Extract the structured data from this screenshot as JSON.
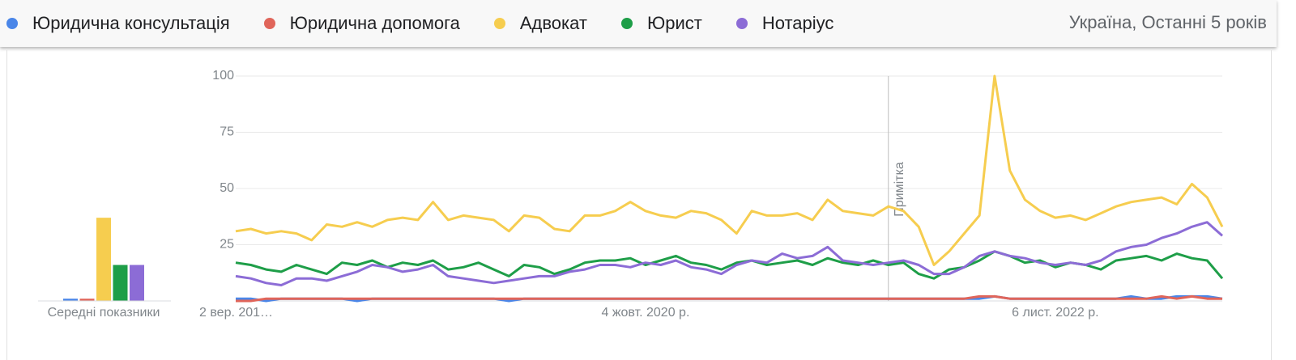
{
  "header": {
    "region": "Україна, Останні 5 років"
  },
  "chart_data": {
    "type": "line",
    "categories": [
      "2 вер. 201…",
      null,
      null,
      null,
      null,
      null,
      null,
      null,
      null,
      null,
      null,
      null,
      null,
      null,
      null,
      null,
      null,
      null,
      null,
      null,
      null,
      null,
      null,
      null,
      null,
      null,
      null,
      "4 жовт. 2020 р.",
      null,
      null,
      null,
      null,
      null,
      null,
      null,
      null,
      null,
      null,
      null,
      null,
      null,
      null,
      null,
      null,
      null,
      null,
      null,
      null,
      null,
      null,
      null,
      null,
      null,
      null,
      "6 лист. 2022 р.",
      null,
      null,
      null,
      null,
      null,
      null,
      null,
      null,
      null,
      null,
      null
    ],
    "ylim": [
      0,
      100
    ],
    "yticks": [
      25,
      50,
      75,
      100
    ],
    "grid": true,
    "annotation": {
      "text": "Примітка",
      "index": 43
    },
    "averages": {
      "label": "Середні показники",
      "values": [
        1,
        1,
        37,
        16,
        16
      ]
    },
    "series": [
      {
        "name": "Юридична консультація",
        "color": "#4a86e8",
        "values": [
          1,
          1,
          0,
          1,
          1,
          1,
          1,
          1,
          0,
          1,
          1,
          1,
          1,
          1,
          1,
          1,
          1,
          1,
          0,
          1,
          1,
          1,
          1,
          1,
          1,
          1,
          1,
          1,
          1,
          1,
          1,
          1,
          1,
          1,
          1,
          1,
          1,
          1,
          1,
          1,
          1,
          1,
          1,
          1,
          1,
          1,
          1,
          1,
          1,
          1,
          2,
          1,
          1,
          1,
          1,
          1,
          1,
          1,
          1,
          2,
          1,
          1,
          2,
          2,
          2,
          1
        ]
      },
      {
        "name": "Юридична допомога",
        "color": "#e0655a",
        "values": [
          0,
          0,
          1,
          1,
          1,
          1,
          1,
          1,
          1,
          1,
          1,
          1,
          1,
          1,
          1,
          1,
          1,
          1,
          1,
          1,
          1,
          1,
          1,
          1,
          1,
          1,
          1,
          1,
          1,
          1,
          1,
          1,
          1,
          1,
          1,
          1,
          1,
          1,
          1,
          1,
          1,
          1,
          1,
          1,
          1,
          1,
          1,
          1,
          1,
          2,
          2,
          1,
          1,
          1,
          1,
          1,
          1,
          1,
          1,
          1,
          1,
          2,
          1,
          2,
          1,
          1
        ]
      },
      {
        "name": "Адвокат",
        "color": "#f6cd4f",
        "values": [
          31,
          32,
          30,
          31,
          30,
          27,
          34,
          33,
          35,
          33,
          36,
          37,
          36,
          44,
          36,
          38,
          37,
          36,
          31,
          38,
          37,
          32,
          31,
          38,
          38,
          40,
          44,
          40,
          38,
          37,
          40,
          39,
          36,
          30,
          40,
          38,
          38,
          39,
          36,
          45,
          40,
          39,
          38,
          42,
          40,
          33,
          16,
          22,
          30,
          38,
          100,
          58,
          45,
          40,
          37,
          38,
          36,
          39,
          42,
          44,
          45,
          46,
          43,
          52,
          46,
          33
        ]
      },
      {
        "name": "Юрист",
        "color": "#1e9e48",
        "values": [
          17,
          16,
          14,
          13,
          16,
          14,
          12,
          17,
          16,
          18,
          15,
          17,
          16,
          18,
          14,
          15,
          17,
          14,
          11,
          16,
          15,
          12,
          14,
          17,
          18,
          18,
          19,
          16,
          18,
          20,
          17,
          16,
          14,
          17,
          18,
          16,
          17,
          18,
          16,
          19,
          17,
          16,
          18,
          16,
          17,
          12,
          10,
          14,
          15,
          18,
          22,
          20,
          17,
          18,
          15,
          17,
          16,
          14,
          18,
          19,
          20,
          18,
          21,
          19,
          18,
          10
        ]
      },
      {
        "name": "Нотаріус",
        "color": "#8c6cd6",
        "values": [
          11,
          10,
          8,
          7,
          10,
          10,
          9,
          11,
          13,
          16,
          15,
          13,
          14,
          16,
          11,
          10,
          9,
          8,
          9,
          10,
          11,
          11,
          13,
          14,
          16,
          16,
          15,
          17,
          16,
          18,
          15,
          14,
          12,
          16,
          18,
          17,
          21,
          19,
          20,
          24,
          18,
          17,
          16,
          17,
          18,
          16,
          12,
          12,
          15,
          20,
          22,
          20,
          19,
          17,
          16,
          17,
          16,
          18,
          22,
          24,
          25,
          28,
          30,
          33,
          35,
          29
        ]
      }
    ]
  }
}
